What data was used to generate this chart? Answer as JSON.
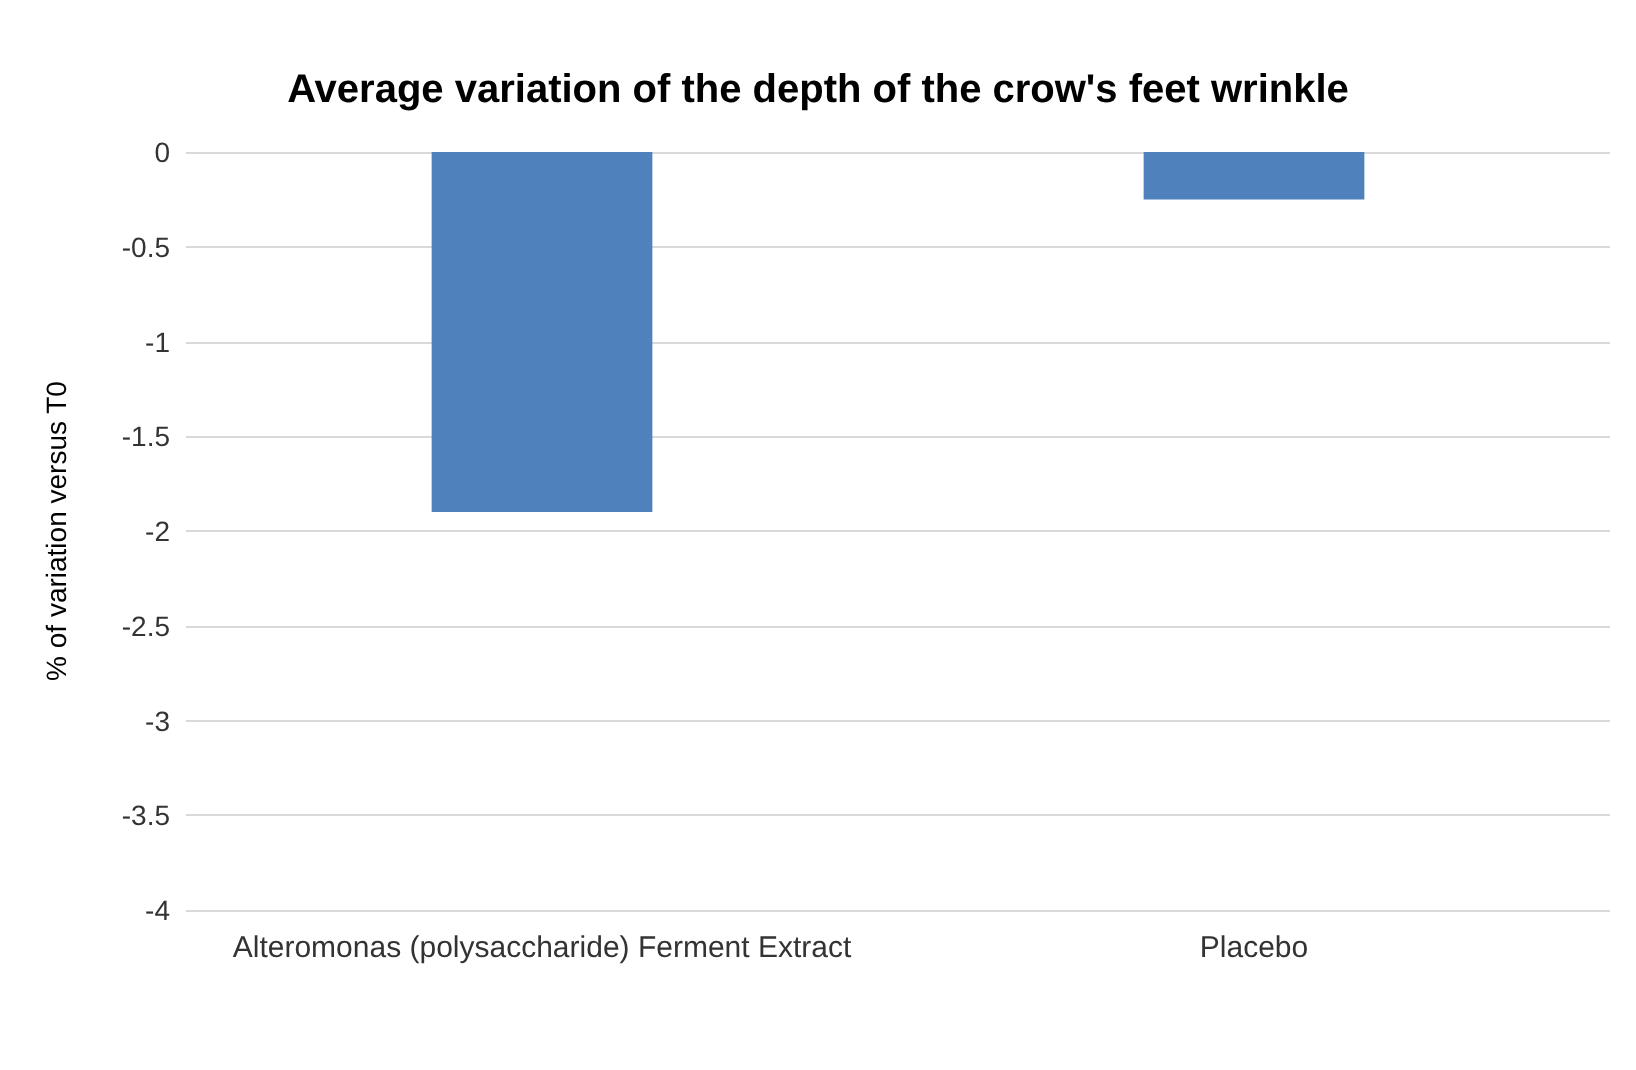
{
  "chart_data": {
    "type": "bar",
    "title": "Average variation of the depth of the crow's feet wrinkle",
    "ylabel": "% of variation versus T0",
    "categories": [
      "Alteromonas (polysaccharide) Ferment Extract",
      "Placebo"
    ],
    "values": [
      -1.9,
      -0.25
    ],
    "color": "#4f81bd",
    "ylim": [
      -4,
      0
    ],
    "yticks": [
      -4,
      -3.5,
      -3,
      -2.5,
      -2,
      -1.5,
      -1,
      -0.5,
      0
    ],
    "grid": "y"
  }
}
